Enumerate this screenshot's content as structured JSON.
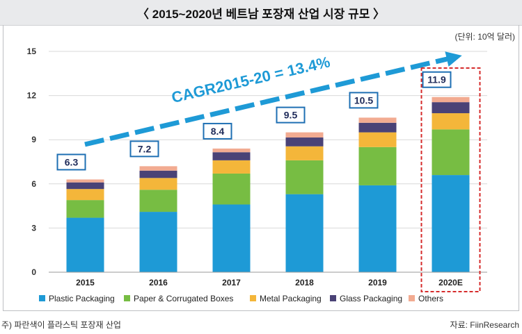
{
  "page": {
    "title": "〈 2015~2020년 베트남 포장재 산업 시장 규모 〉",
    "unit": "(단위: 10억 달러)",
    "footnote": "주) 파란색이 플라스틱 포장재 산업",
    "source": "자료: FiinResearch"
  },
  "colors": {
    "plastic": "#1e9ad6",
    "paper": "#77bd43",
    "metal": "#f4b63a",
    "glass": "#4a4276",
    "others": "#f2ab91",
    "label_border": "#1e6fb3",
    "label_text": "#1f2b5a",
    "cagr": "#1e9ad6",
    "highlight_box": "#d62b2b"
  },
  "chart_data": {
    "type": "bar",
    "stacked": true,
    "categories": [
      "2015",
      "2016",
      "2017",
      "2018",
      "2019",
      "2020E"
    ],
    "series": [
      {
        "name": "Plastic Packaging",
        "values": [
          3.7,
          4.1,
          4.6,
          5.3,
          5.9,
          6.6
        ]
      },
      {
        "name": "Paper & Corrugated Boxes",
        "values": [
          1.2,
          1.5,
          2.1,
          2.3,
          2.6,
          3.1
        ]
      },
      {
        "name": "Metal Packaging",
        "values": [
          0.75,
          0.8,
          0.9,
          0.95,
          1.0,
          1.1
        ]
      },
      {
        "name": "Glass Packaging",
        "values": [
          0.45,
          0.5,
          0.55,
          0.6,
          0.65,
          0.75
        ]
      },
      {
        "name": "Others",
        "values": [
          0.2,
          0.3,
          0.25,
          0.35,
          0.35,
          0.35
        ]
      }
    ],
    "totals": [
      "6.3",
      "7.2",
      "8.4",
      "9.5",
      "10.5",
      "11.9"
    ],
    "ylim": [
      0,
      15
    ],
    "yticks": [
      "0",
      "3",
      "6",
      "9",
      "12",
      "15"
    ],
    "grid": true,
    "legend_position": "bottom",
    "annotation": "CAGR2015-20 = 13.4%",
    "highlighted_category": "2020E"
  }
}
